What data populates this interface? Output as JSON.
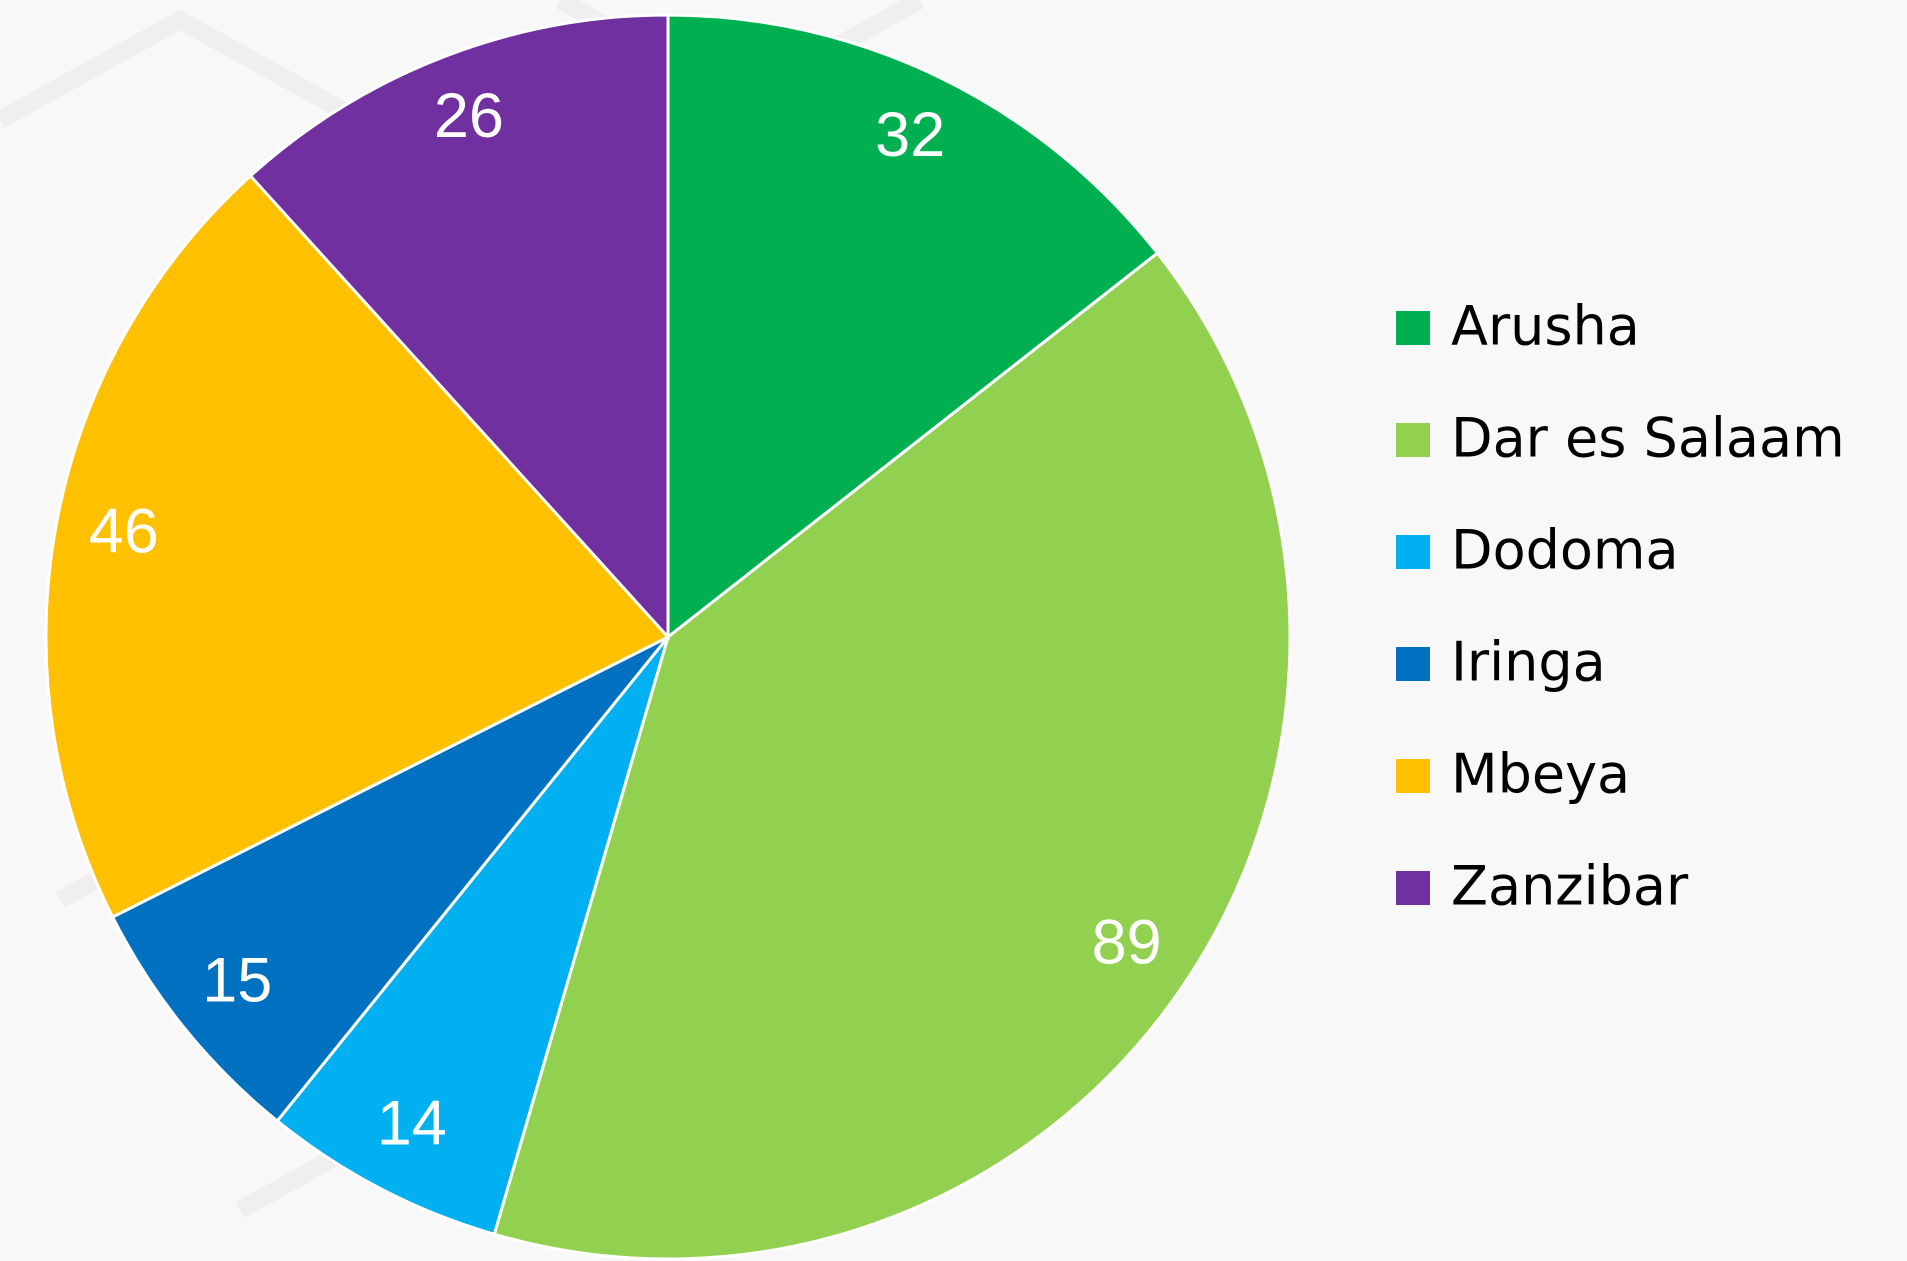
{
  "chart_data": {
    "type": "pie",
    "categories": [
      "Arusha",
      "Dar es Salaam",
      "Dodoma",
      "Iringa",
      "Mbeya",
      "Zanzibar"
    ],
    "values": [
      32,
      89,
      14,
      15,
      46,
      26
    ],
    "colors": [
      "#00b050",
      "#92d050",
      "#00b0f0",
      "#0070c0",
      "#ffc000",
      "#7030a0"
    ],
    "legend": "right"
  }
}
